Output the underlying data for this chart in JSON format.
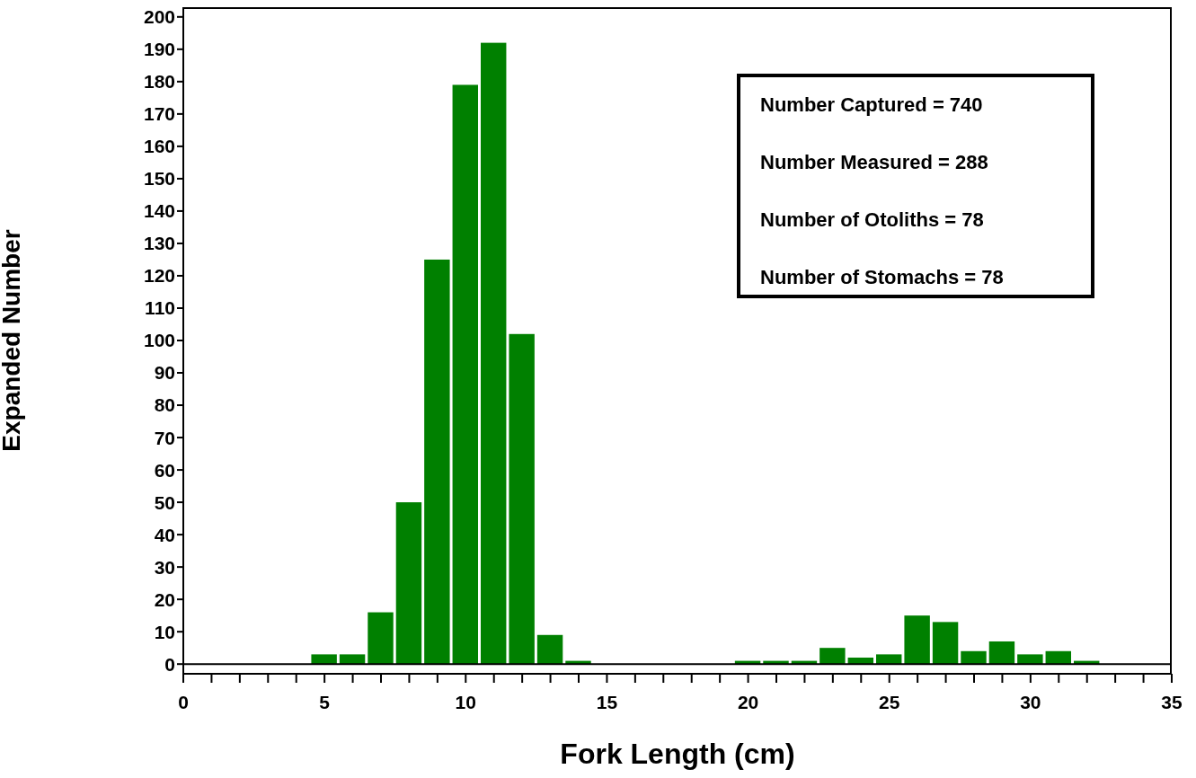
{
  "chart_data": {
    "type": "histogram",
    "xlabel": "Fork Length (cm)",
    "ylabel": "Expanded Number",
    "bins": [
      4.5,
      5.5,
      6.5,
      7.5,
      8.5,
      9.5,
      10.5,
      11.5,
      12.5,
      13.5,
      14.5,
      15.5,
      16.5,
      17.5,
      18.5,
      19.5,
      20.5,
      21.5,
      22.5,
      23.5,
      24.5,
      25.5,
      26.5,
      27.5,
      28.5,
      29.5,
      30.5,
      31.5,
      32.5
    ],
    "values": [
      3,
      3,
      16,
      50,
      125,
      179,
      192,
      102,
      9,
      1,
      0,
      0,
      0,
      0,
      0,
      1,
      1,
      1,
      5,
      2,
      3,
      15,
      13,
      4,
      7,
      3,
      4,
      1
    ],
    "color": "#008000",
    "xlim": [
      0,
      35
    ],
    "xticks": [
      0,
      {
        "value": 1,
        "label": null
      },
      {
        "value": 2,
        "label": null
      },
      {
        "value": 3,
        "label": null
      },
      {
        "value": 4,
        "label": null
      },
      5,
      {
        "value": 6,
        "label": null
      },
      {
        "value": 7,
        "label": null
      },
      {
        "value": 8,
        "label": null
      },
      {
        "value": 9,
        "label": null
      },
      10,
      {
        "value": 11,
        "label": null
      },
      {
        "value": 12,
        "label": null
      },
      {
        "value": 13,
        "label": null
      },
      {
        "value": 14,
        "label": null
      },
      15,
      {
        "value": 16,
        "label": null
      },
      {
        "value": 17,
        "label": null
      },
      {
        "value": 18,
        "label": null
      },
      {
        "value": 19,
        "label": null
      },
      20,
      {
        "value": 21,
        "label": null
      },
      {
        "value": 22,
        "label": null
      },
      {
        "value": 23,
        "label": null
      },
      {
        "value": 24,
        "label": null
      },
      25,
      {
        "value": 26,
        "label": null
      },
      {
        "value": 27,
        "label": null
      },
      {
        "value": 28,
        "label": null
      },
      {
        "value": 29,
        "label": null
      },
      30,
      {
        "value": 31,
        "label": null
      },
      {
        "value": 32,
        "label": null
      },
      {
        "value": 33,
        "label": null
      },
      {
        "value": 34,
        "label": null
      },
      35
    ],
    "ylim": [
      -3,
      203
    ],
    "yticks": [
      0,
      10,
      20,
      30,
      40,
      50,
      60,
      70,
      80,
      90,
      100,
      110,
      120,
      130,
      140,
      150,
      160,
      170,
      180,
      190,
      200
    ],
    "ref_lines": [
      {
        "axis": "y",
        "value": 0,
        "color": "#000000"
      }
    ],
    "annotations": [
      "Number Captured = 740",
      "Number Measured = 288",
      "Number of Otoliths = 78",
      "Number of Stomachs = 78"
    ],
    "grid": false
  }
}
